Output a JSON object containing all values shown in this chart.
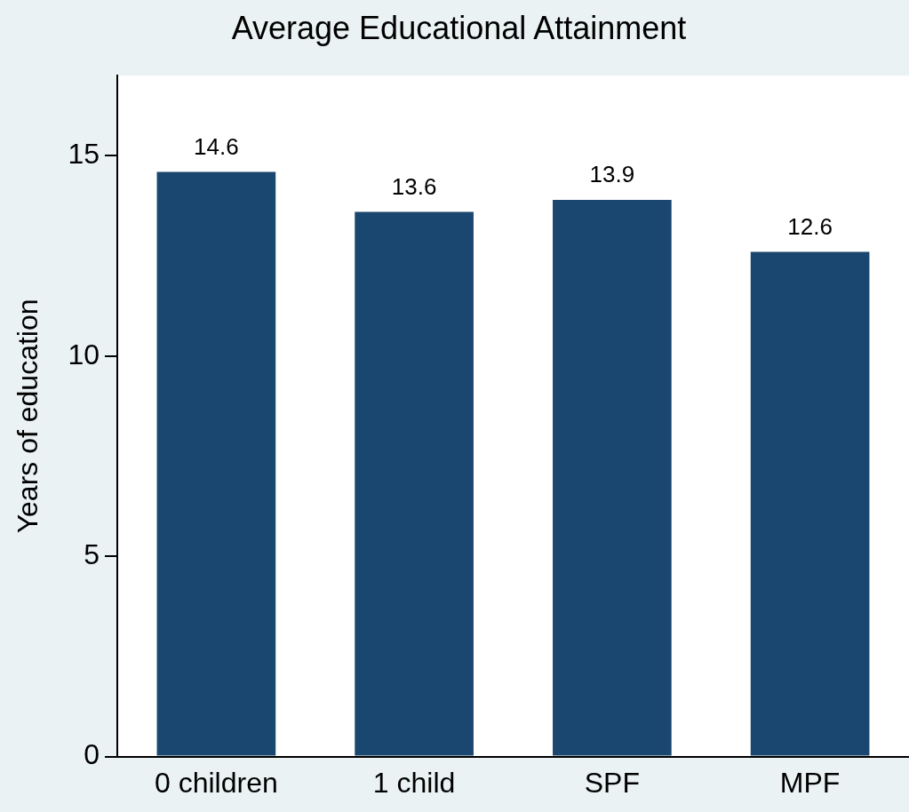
{
  "chart_data": {
    "type": "bar",
    "title": "Average Educational Attainment",
    "ylabel": "Years of education",
    "categories": [
      "0 children",
      "1 child",
      "SPF",
      "MPF"
    ],
    "values": [
      14.6,
      13.6,
      13.9,
      12.6
    ],
    "color": "#1a476f",
    "ylim": [
      0,
      17
    ],
    "yticks": [
      0,
      5,
      10,
      15
    ],
    "grid": false,
    "legend": false,
    "data_labels": true
  }
}
